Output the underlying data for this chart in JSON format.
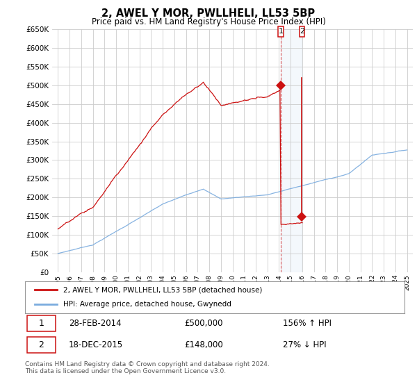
{
  "title": "2, AWEL Y MOR, PWLLHELI, LL53 5BP",
  "subtitle": "Price paid vs. HM Land Registry's House Price Index (HPI)",
  "ylim": [
    0,
    650000
  ],
  "yticks": [
    0,
    50000,
    100000,
    150000,
    200000,
    250000,
    300000,
    350000,
    400000,
    450000,
    500000,
    550000,
    600000,
    650000
  ],
  "hpi_color": "#7aabde",
  "price_color": "#cc1111",
  "background_color": "#ffffff",
  "legend_label_red": "2, AWEL Y MOR, PWLLHELI, LL53 5BP (detached house)",
  "legend_label_blue": "HPI: Average price, detached house, Gwynedd",
  "transaction1_date": "28-FEB-2014",
  "transaction1_price": "£500,000",
  "transaction1_hpi": "156% ↑ HPI",
  "transaction2_date": "18-DEC-2015",
  "transaction2_price": "£148,000",
  "transaction2_hpi": "27% ↓ HPI",
  "footer": "Contains HM Land Registry data © Crown copyright and database right 2024.\nThis data is licensed under the Open Government Licence v3.0.",
  "transaction1_x": 2014.15,
  "transaction1_y": 500000,
  "transaction2_x": 2015.96,
  "transaction2_y": 148000,
  "xlim_left": 1994.5,
  "xlim_right": 2025.5
}
